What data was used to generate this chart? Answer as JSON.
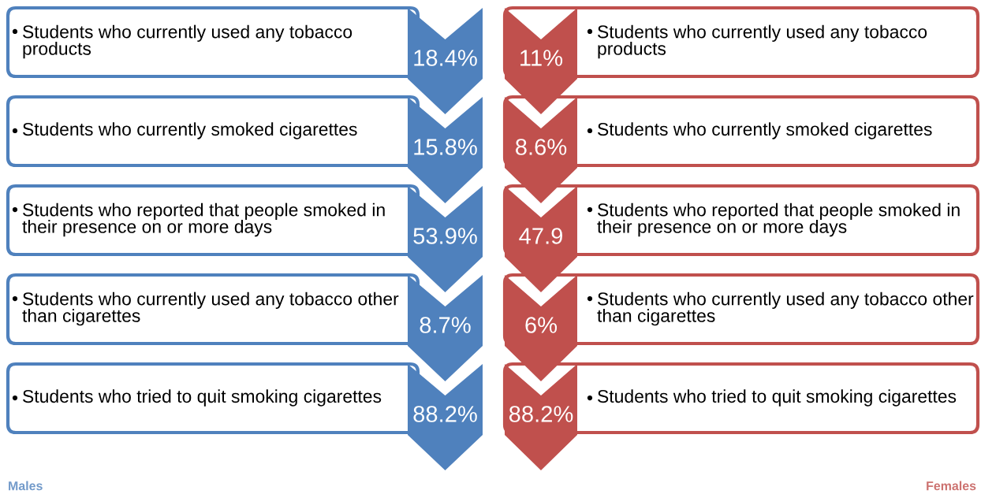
{
  "chart_data": {
    "type": "other",
    "categories": [
      "Students who currently used any tobacco products",
      "Students who currently smoked cigarettes",
      "Students who reported that people smoked in their presence on or more days",
      "Students who currently used any tobacco other than cigarettes",
      "Students who tried to quit smoking cigarettes"
    ],
    "series": [
      {
        "name": "Males",
        "color": "#4f81bd",
        "values": [
          18.4,
          15.8,
          53.9,
          8.7,
          88.2
        ],
        "value_labels": [
          "18.4%",
          "15.8%",
          "53.9%",
          "8.7%",
          "88.2%"
        ]
      },
      {
        "name": "Females",
        "color": "#c0504d",
        "values": [
          11,
          8.6,
          47.9,
          6,
          88.2
        ],
        "value_labels": [
          "11%",
          "8.6%",
          "47.9",
          "6%",
          "88.2%"
        ]
      }
    ]
  }
}
